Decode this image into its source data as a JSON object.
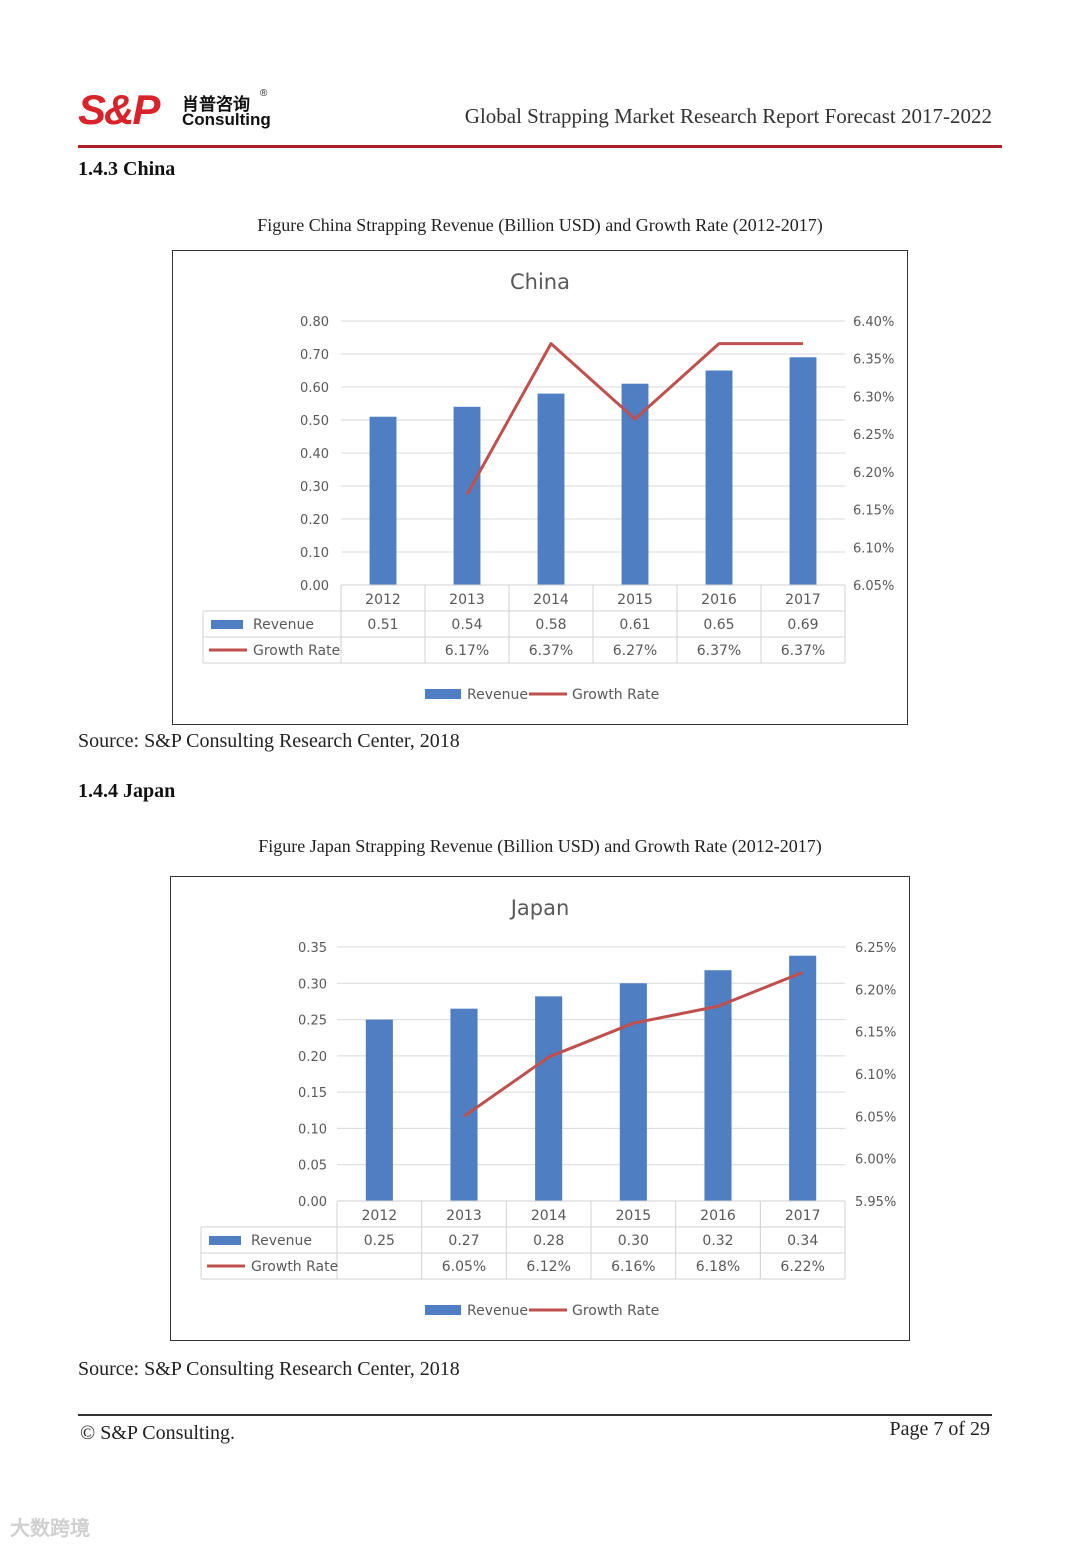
{
  "header": {
    "logo_main": "S&P",
    "logo_cn": "肖普咨询",
    "logo_en": "Consulting",
    "logo_reg": "®",
    "title": "Global Strapping Market Research Report Forecast 2017-2022"
  },
  "sections": [
    {
      "heading": "1.4.3 China",
      "caption": "Figure China Strapping Revenue (Billion USD) and Growth Rate (2012-2017)",
      "source": "Source: S&P Consulting Research Center, 2018"
    },
    {
      "heading": "1.4.4 Japan",
      "caption": "Figure Japan Strapping Revenue (Billion USD) and Growth Rate (2012-2017)",
      "source": "Source: S&P Consulting Research Center, 2018"
    }
  ],
  "footer": {
    "copyright": "© S&P Consulting.",
    "page": "Page  7 of 29"
  },
  "watermark": "大数跨境",
  "colors": {
    "bar": "#4f7fc2",
    "line": "#c0504d",
    "rule": "#b01e23"
  },
  "chart_data": [
    {
      "type": "bar",
      "title": "China",
      "categories": [
        "2012",
        "2013",
        "2014",
        "2015",
        "2016",
        "2017"
      ],
      "series": [
        {
          "name": "Revenue",
          "kind": "bar",
          "axis": "left",
          "values": [
            0.51,
            0.54,
            0.58,
            0.61,
            0.65,
            0.69
          ],
          "labels": [
            "0.51",
            "0.54",
            "0.58",
            "0.61",
            "0.65",
            "0.69"
          ]
        },
        {
          "name": "Growth Rate",
          "kind": "line",
          "axis": "right",
          "values": [
            null,
            6.17,
            6.37,
            6.27,
            6.37,
            6.37
          ],
          "labels": [
            "",
            "6.17%",
            "6.37%",
            "6.27%",
            "6.37%",
            "6.37%"
          ]
        }
      ],
      "ylim": [
        0,
        0.8
      ],
      "yticks": [
        "0.00",
        "0.10",
        "0.20",
        "0.30",
        "0.40",
        "0.50",
        "0.60",
        "0.70",
        "0.80"
      ],
      "y2lim": [
        6.05,
        6.4
      ],
      "y2ticks": [
        "6.05%",
        "6.10%",
        "6.15%",
        "6.20%",
        "6.25%",
        "6.30%",
        "6.35%",
        "6.40%"
      ],
      "legend": [
        "Revenue",
        "Growth Rate"
      ],
      "legend_position": "bottom",
      "grid": true
    },
    {
      "type": "bar",
      "title": "Japan",
      "categories": [
        "2012",
        "2013",
        "2014",
        "2015",
        "2016",
        "2017"
      ],
      "series": [
        {
          "name": "Revenue",
          "kind": "bar",
          "axis": "left",
          "values": [
            0.25,
            0.265,
            0.282,
            0.3,
            0.318,
            0.338
          ],
          "labels": [
            "0.25",
            "0.27",
            "0.28",
            "0.30",
            "0.32",
            "0.34"
          ]
        },
        {
          "name": "Growth Rate",
          "kind": "line",
          "axis": "right",
          "values": [
            null,
            6.05,
            6.12,
            6.16,
            6.18,
            6.22
          ],
          "labels": [
            "",
            "6.05%",
            "6.12%",
            "6.16%",
            "6.18%",
            "6.22%"
          ]
        }
      ],
      "ylim": [
        0,
        0.35
      ],
      "yticks": [
        "0.00",
        "0.05",
        "0.10",
        "0.15",
        "0.20",
        "0.25",
        "0.30",
        "0.35"
      ],
      "y2lim": [
        5.95,
        6.25
      ],
      "y2ticks": [
        "5.95%",
        "6.00%",
        "6.05%",
        "6.10%",
        "6.15%",
        "6.20%",
        "6.25%"
      ],
      "legend": [
        "Revenue",
        "Growth Rate"
      ],
      "legend_position": "bottom",
      "grid": true
    }
  ]
}
